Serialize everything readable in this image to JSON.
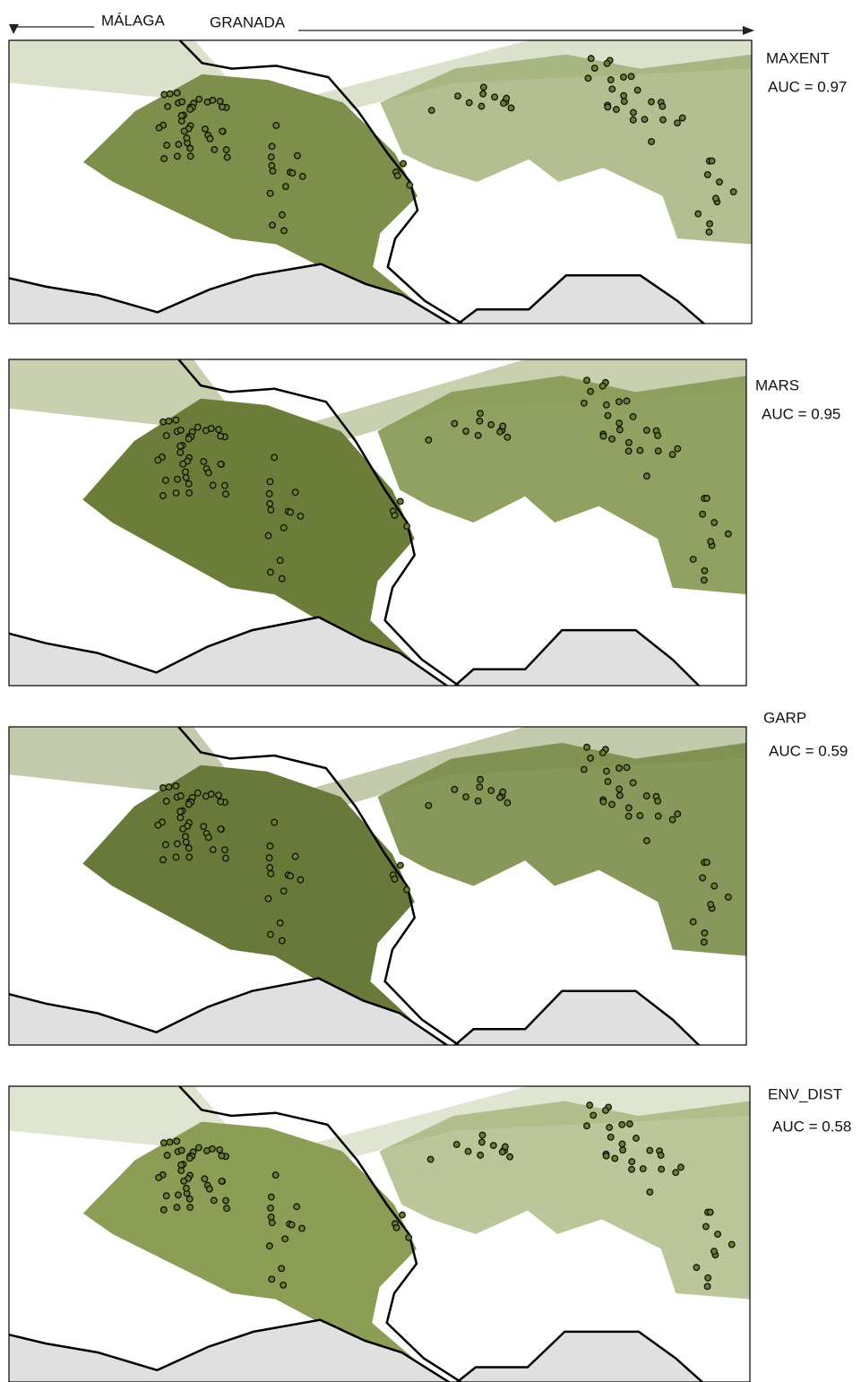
{
  "header": {
    "left_label": "MÁLAGA",
    "right_label": "GRANADA"
  },
  "panels": [
    {
      "model": "MAXENT",
      "auc": "AUC = 0.97"
    },
    {
      "model": "MARS",
      "auc": "AUC = 0.95"
    },
    {
      "model": "GARP",
      "auc": "AUC = 0.59"
    },
    {
      "model": "ENV_DIST",
      "auc": "AUC = 0.58"
    }
  ]
}
